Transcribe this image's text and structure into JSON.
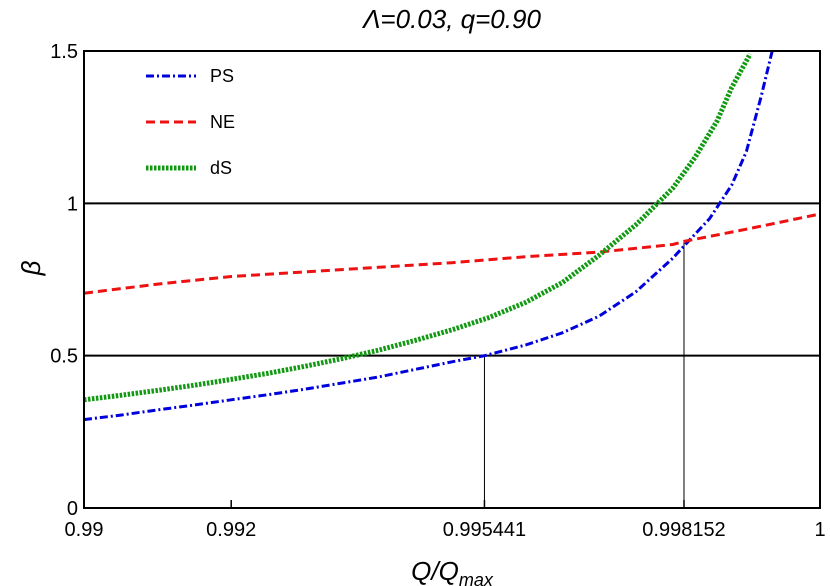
{
  "chart_data": {
    "type": "line",
    "title": "Λ=0.03, q=0.90",
    "xlabel": "Q/Q",
    "xlabel_sub": "max",
    "ylabel": "β",
    "xlim": [
      0.99,
      1.0
    ],
    "ylim": [
      0,
      1.5
    ],
    "x_ticks": [
      {
        "value": 0.99,
        "label": "0.99"
      },
      {
        "value": 0.992,
        "label": "0.992"
      },
      {
        "value": 0.995441,
        "label": "0.995441"
      },
      {
        "value": 0.998152,
        "label": "0.998152"
      },
      {
        "value": 1.0,
        "label": "1"
      }
    ],
    "y_ticks": [
      {
        "value": 0,
        "label": "0"
      },
      {
        "value": 0.5,
        "label": "0.5"
      },
      {
        "value": 1,
        "label": "1"
      },
      {
        "value": 1.5,
        "label": "1.5"
      }
    ],
    "hlines": [
      0.5,
      1.0
    ],
    "vlines": [
      {
        "x": 0.995441,
        "y": 0.5
      },
      {
        "x": 0.998152,
        "y": 0.875
      }
    ],
    "legend_position": "top-left",
    "series": [
      {
        "name": "PS",
        "color": "#0000dd",
        "dash": "dashdot",
        "points": [
          [
            0.99,
            0.29
          ],
          [
            0.9905,
            0.305
          ],
          [
            0.991,
            0.322
          ],
          [
            0.9915,
            0.338
          ],
          [
            0.992,
            0.355
          ],
          [
            0.9925,
            0.372
          ],
          [
            0.993,
            0.39
          ],
          [
            0.9935,
            0.41
          ],
          [
            0.994,
            0.43
          ],
          [
            0.9945,
            0.455
          ],
          [
            0.995,
            0.48
          ],
          [
            0.995441,
            0.5
          ],
          [
            0.996,
            0.535
          ],
          [
            0.9965,
            0.575
          ],
          [
            0.997,
            0.63
          ],
          [
            0.9975,
            0.71
          ],
          [
            0.998,
            0.82
          ],
          [
            0.998152,
            0.86
          ],
          [
            0.9985,
            0.95
          ],
          [
            0.9988,
            1.06
          ],
          [
            0.999,
            1.17
          ],
          [
            0.9992,
            1.35
          ],
          [
            0.99935,
            1.5
          ]
        ]
      },
      {
        "name": "NE",
        "color": "#ee1111",
        "dash": "dashed",
        "points": [
          [
            0.99,
            0.705
          ],
          [
            0.991,
            0.735
          ],
          [
            0.992,
            0.76
          ],
          [
            0.993,
            0.775
          ],
          [
            0.994,
            0.79
          ],
          [
            0.995,
            0.805
          ],
          [
            0.996,
            0.825
          ],
          [
            0.997,
            0.84
          ],
          [
            0.998,
            0.865
          ],
          [
            0.998152,
            0.875
          ],
          [
            0.999,
            0.915
          ],
          [
            1.0,
            0.965
          ]
        ]
      },
      {
        "name": "dS",
        "color": "#119911",
        "dash": "dotted",
        "points": [
          [
            0.99,
            0.355
          ],
          [
            0.9905,
            0.37
          ],
          [
            0.991,
            0.386
          ],
          [
            0.9915,
            0.403
          ],
          [
            0.992,
            0.422
          ],
          [
            0.9925,
            0.442
          ],
          [
            0.993,
            0.465
          ],
          [
            0.9935,
            0.49
          ],
          [
            0.994,
            0.518
          ],
          [
            0.9945,
            0.55
          ],
          [
            0.995,
            0.585
          ],
          [
            0.9955,
            0.625
          ],
          [
            0.996,
            0.675
          ],
          [
            0.9965,
            0.74
          ],
          [
            0.997,
            0.83
          ],
          [
            0.9975,
            0.93
          ],
          [
            0.998,
            1.05
          ],
          [
            0.9983,
            1.15
          ],
          [
            0.9986,
            1.27
          ],
          [
            0.9988,
            1.38
          ],
          [
            0.99905,
            1.49
          ]
        ]
      }
    ]
  }
}
